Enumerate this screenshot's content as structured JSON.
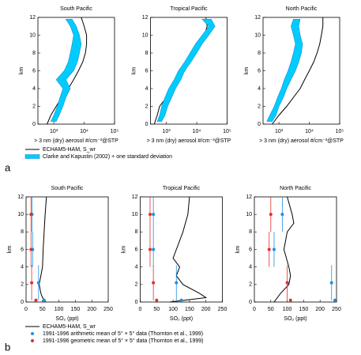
{
  "chart_data": [
    {
      "type": "line",
      "title": "South Pacific",
      "xlabel": "> 3 nm (dry) aerosol #/cm⁻³@STP",
      "ylabel": "km",
      "xscale": "log",
      "xlim": [
        300,
        100000
      ],
      "xticks": [
        {
          "value": 1000,
          "label": "10³"
        },
        {
          "value": 10000,
          "label": "10⁴"
        },
        {
          "value": 100000,
          "label": "10⁵"
        }
      ],
      "ylim": [
        0,
        12
      ],
      "yticks": [
        0,
        2,
        4,
        6,
        8,
        10,
        12
      ],
      "series": [
        {
          "name": "ECHAM5-HAM, S_wr",
          "color": "#000000",
          "kind": "line",
          "y": [
            0,
            1,
            2,
            3,
            4,
            5,
            6,
            7,
            8,
            9,
            10,
            11,
            12
          ],
          "values": [
            600,
            800,
            1200,
            1800,
            3000,
            4500,
            6500,
            9000,
            11000,
            12000,
            12000,
            10000,
            8000
          ]
        },
        {
          "name": "Clarke and Kapustin (2002) + one standard deviation",
          "color": "#00ccff",
          "kind": "band",
          "y": [
            0.3,
            1,
            2,
            3,
            4,
            5,
            6,
            7,
            8,
            9,
            10,
            11,
            11.8
          ],
          "values": [
            800,
            1000,
            1300,
            1600,
            2000,
            1200,
            2200,
            3000,
            3500,
            4000,
            4500,
            3500,
            2500
          ],
          "upper": [
            1200,
            1500,
            2000,
            2500,
            3500,
            2500,
            4500,
            6000,
            7000,
            8000,
            7000,
            5500,
            4000
          ]
        }
      ]
    },
    {
      "type": "line",
      "title": "Tropical Pacific",
      "xlabel": "> 3 nm (dry) aerosol #/cm⁻³@STP",
      "ylabel": "km",
      "xscale": "log",
      "xlim": [
        300,
        100000
      ],
      "xticks": [
        {
          "value": 1000,
          "label": "10³"
        },
        {
          "value": 10000,
          "label": "10⁴"
        },
        {
          "value": 100000,
          "label": "10⁵"
        }
      ],
      "ylim": [
        0,
        12
      ],
      "yticks": [
        0,
        2,
        4,
        6,
        8,
        10,
        12
      ],
      "series": [
        {
          "name": "ECHAM5-HAM, S_wr",
          "color": "#000000",
          "kind": "line",
          "y": [
            0,
            1,
            2,
            3,
            4,
            5,
            6,
            7,
            8,
            9,
            10,
            11,
            12
          ],
          "values": [
            400,
            500,
            600,
            1000,
            1500,
            2500,
            4000,
            6000,
            9000,
            13000,
            18000,
            22000,
            20000
          ]
        },
        {
          "name": "Clarke and Kapustin (2002) + one standard deviation",
          "color": "#00ccff",
          "kind": "band",
          "y": [
            0.3,
            1,
            2,
            3,
            4,
            5,
            6,
            7,
            8,
            9,
            10,
            11,
            11.8
          ],
          "values": [
            500,
            600,
            700,
            900,
            1200,
            1800,
            2500,
            4000,
            6000,
            9000,
            15000,
            25000,
            15000
          ],
          "upper": [
            700,
            900,
            1100,
            1500,
            2000,
            3000,
            4000,
            6500,
            10000,
            15000,
            25000,
            40000,
            30000
          ]
        }
      ]
    },
    {
      "type": "line",
      "title": "North Pacific",
      "xlabel": "> 3 nm (dry) aerosol #/cm⁻³@STP",
      "ylabel": "km",
      "xscale": "log",
      "xlim": [
        300,
        100000
      ],
      "xticks": [
        {
          "value": 1000,
          "label": "10³"
        },
        {
          "value": 10000,
          "label": "10⁴"
        },
        {
          "value": 100000,
          "label": "10⁵"
        }
      ],
      "ylim": [
        0,
        12
      ],
      "yticks": [
        0,
        2,
        4,
        6,
        8,
        10,
        12
      ],
      "series": [
        {
          "name": "ECHAM5-HAM, S_wr",
          "color": "#000000",
          "kind": "line",
          "y": [
            0,
            1,
            2,
            3,
            4,
            5,
            6,
            7,
            8,
            9,
            10,
            11,
            12
          ],
          "values": [
            600,
            1000,
            1800,
            3000,
            5000,
            7000,
            10000,
            14000,
            18000,
            22000,
            25000,
            28000,
            28000
          ]
        },
        {
          "name": "Clarke and Kapustin (2002) + one standard deviation",
          "color": "#00ccff",
          "kind": "band",
          "y": [
            0.3,
            1,
            2,
            3,
            4,
            5,
            6,
            7,
            8,
            9,
            10,
            11,
            11.8
          ],
          "values": [
            400,
            500,
            700,
            900,
            1200,
            1500,
            2000,
            2500,
            3000,
            3500,
            3000,
            2500,
            3000
          ],
          "upper": [
            600,
            800,
            1000,
            1400,
            1800,
            2500,
            3500,
            4500,
            5500,
            6000,
            5000,
            4500,
            5000
          ]
        }
      ]
    },
    {
      "type": "line",
      "title": "South Pacific",
      "xlabel": "SO₂ (ppt)",
      "ylabel": "km",
      "xlim": [
        0,
        250
      ],
      "xticks": [
        0,
        50,
        100,
        150,
        200,
        250
      ],
      "ylim": [
        0,
        12
      ],
      "yticks": [
        0,
        2,
        4,
        6,
        8,
        10,
        12
      ],
      "series": [
        {
          "name": "ECHAM5-HAM, S_wr",
          "color": "#000000",
          "kind": "line",
          "y": [
            0,
            0.5,
            1,
            2,
            3,
            4,
            6,
            8,
            10,
            12
          ],
          "values": [
            60,
            50,
            45,
            40,
            45,
            50,
            52,
            55,
            58,
            62
          ]
        },
        {
          "name": "1991-1996 arithmetic mean of 5° × 5° data (Thornton et al., 1999)",
          "color": "#1f8fe0",
          "kind": "points",
          "y": [
            0.2,
            2.2,
            6,
            10
          ],
          "yerr": [
            0.2,
            2,
            2,
            2
          ],
          "values": [
            55,
            38,
            20,
            18
          ]
        },
        {
          "name": "1991-1996 geometric mean of 5° × 5° data (Thornton et al., 1999)",
          "color": "#e0302a",
          "kind": "points",
          "y": [
            0.2,
            2.2,
            6,
            10
          ],
          "yerr": [
            0.2,
            2,
            2,
            2
          ],
          "values": [
            30,
            17,
            15,
            15
          ]
        }
      ]
    },
    {
      "type": "line",
      "title": "Tropical Pacific",
      "xlabel": "SO₂ (ppt)",
      "ylabel": "km",
      "xlim": [
        0,
        250
      ],
      "xticks": [
        0,
        50,
        100,
        150,
        200,
        250
      ],
      "ylim": [
        0,
        12
      ],
      "yticks": [
        0,
        2,
        4,
        6,
        8,
        10,
        12
      ],
      "series": [
        {
          "name": "ECHAM5-HAM, S_wr",
          "color": "#000000",
          "kind": "line",
          "y": [
            0,
            0.5,
            1,
            2,
            3,
            4,
            5,
            6,
            8,
            10,
            12
          ],
          "values": [
            90,
            200,
            180,
            130,
            110,
            120,
            100,
            110,
            130,
            145,
            150
          ]
        },
        {
          "name": "1991-1996 arithmetic mean of 5° × 5° data (Thornton et al., 1999)",
          "color": "#1f8fe0",
          "kind": "points",
          "y": [
            0.2,
            2.2,
            6,
            10
          ],
          "yerr": [
            0.2,
            2,
            2,
            2
          ],
          "values": [
            125,
            110,
            40,
            40
          ]
        },
        {
          "name": "1991-1996 geometric mean of 5° × 5° data (Thornton et al., 1999)",
          "color": "#e0302a",
          "kind": "points",
          "y": [
            0.2,
            2.2,
            6,
            10
          ],
          "yerr": [
            0.2,
            2,
            2,
            2
          ],
          "values": [
            50,
            40,
            30,
            30
          ]
        }
      ]
    },
    {
      "type": "line",
      "title": "North Pacific",
      "xlabel": "SO₂ (ppt)",
      "ylabel": "km",
      "xlim": [
        0,
        250
      ],
      "xticks": [
        0,
        50,
        100,
        150,
        200,
        250
      ],
      "ylim": [
        0,
        12
      ],
      "yticks": [
        0,
        2,
        4,
        6,
        8,
        10,
        12
      ],
      "series": [
        {
          "name": "ECHAM5-HAM, S_wr",
          "color": "#000000",
          "kind": "line",
          "y": [
            0,
            1,
            2,
            3,
            4,
            6,
            8,
            9,
            10,
            12
          ],
          "values": [
            60,
            80,
            105,
            110,
            105,
            90,
            100,
            120,
            115,
            100
          ]
        },
        {
          "name": "1991-1996 arithmetic mean of 5° × 5° data (Thornton et al., 1999)",
          "color": "#1f8fe0",
          "kind": "points",
          "y": [
            0.2,
            2.2,
            6,
            10
          ],
          "yerr": [
            0.2,
            2,
            2,
            2
          ],
          "values": [
            245,
            235,
            60,
            85
          ]
        },
        {
          "name": "1991-1996 geometric mean of 5° × 5° data (Thornton et al., 1999)",
          "color": "#e0302a",
          "kind": "points",
          "y": [
            0.2,
            2.2,
            6,
            10
          ],
          "yerr": [
            0.2,
            2,
            2,
            2
          ],
          "values": [
            110,
            100,
            45,
            50
          ]
        }
      ]
    }
  ],
  "panel_labels": [
    "a",
    "b"
  ]
}
